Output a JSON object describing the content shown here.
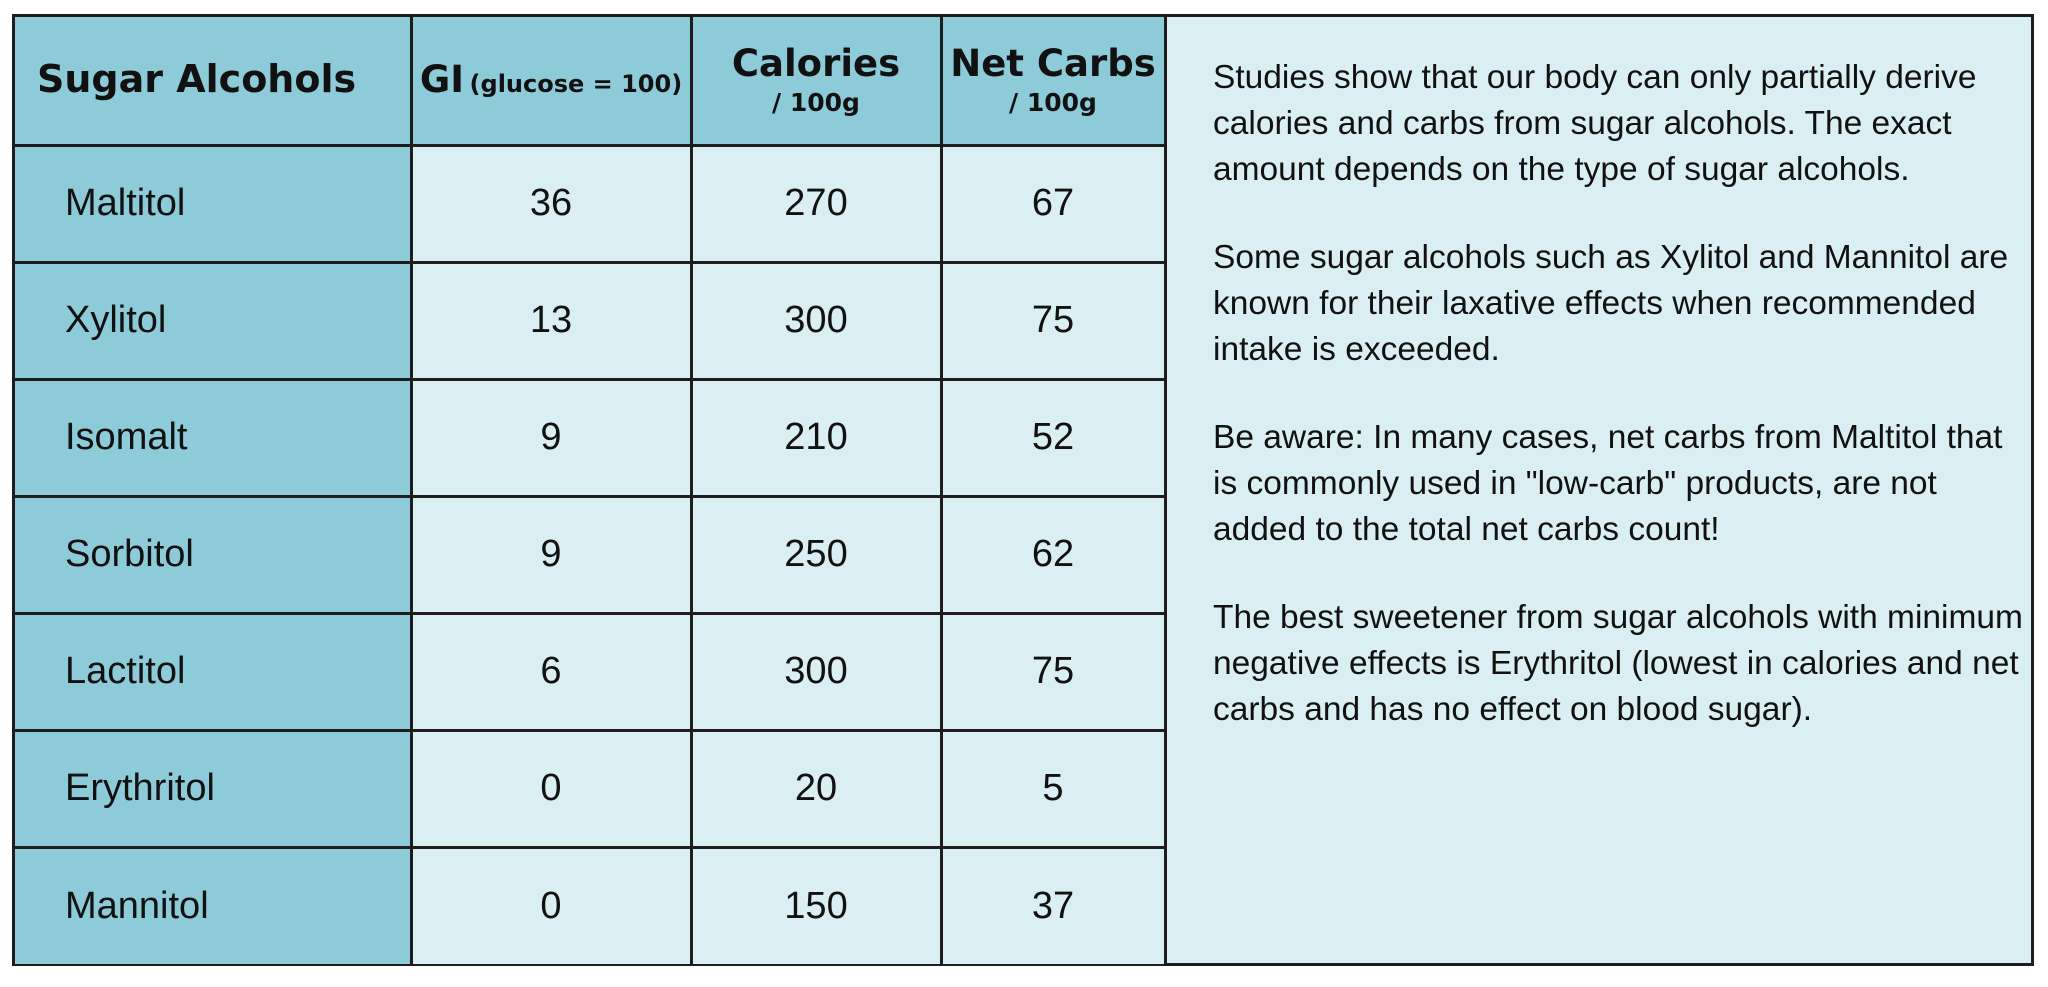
{
  "table": {
    "headers": {
      "name": "Sugar Alcohols",
      "gi_main": "GI",
      "gi_sub": "(glucose = 100)",
      "calories_main": "Calories",
      "calories_sub": "/ 100g",
      "netcarbs_main": "Net Carbs",
      "netcarbs_sub": "/ 100g"
    },
    "rows": [
      {
        "name": "Maltitol",
        "gi": "36",
        "calories": "270",
        "net_carbs": "67"
      },
      {
        "name": "Xylitol",
        "gi": "13",
        "calories": "300",
        "net_carbs": "75"
      },
      {
        "name": "Isomalt",
        "gi": "9",
        "calories": "210",
        "net_carbs": "52"
      },
      {
        "name": "Sorbitol",
        "gi": "9",
        "calories": "250",
        "net_carbs": "62"
      },
      {
        "name": "Lactitol",
        "gi": "6",
        "calories": "300",
        "net_carbs": "75"
      },
      {
        "name": "Erythritol",
        "gi": "0",
        "calories": "20",
        "net_carbs": "5"
      },
      {
        "name": "Mannitol",
        "gi": "0",
        "calories": "150",
        "net_carbs": "37"
      }
    ]
  },
  "notes": [
    "Studies show that our body can only partially derive calories and carbs from sugar alcohols. The exact amount depends on the type of sugar alcohols.",
    "Some sugar alcohols such as Xylitol and Mannitol are known for their laxative effects when recommended intake is exceeded.",
    "Be aware: In many cases, net carbs from Maltitol that is commonly used in \"low-carb\" products, are not added to the total net carbs count!",
    "The best sweetener from sugar alcohols with minimum negative effects is Erythritol (lowest in calories and net carbs and has no effect on blood sugar)."
  ],
  "colors": {
    "header_bg": "#8ecbd8",
    "cell_bg": "#d9eff4",
    "border": "#1d1d1d"
  }
}
